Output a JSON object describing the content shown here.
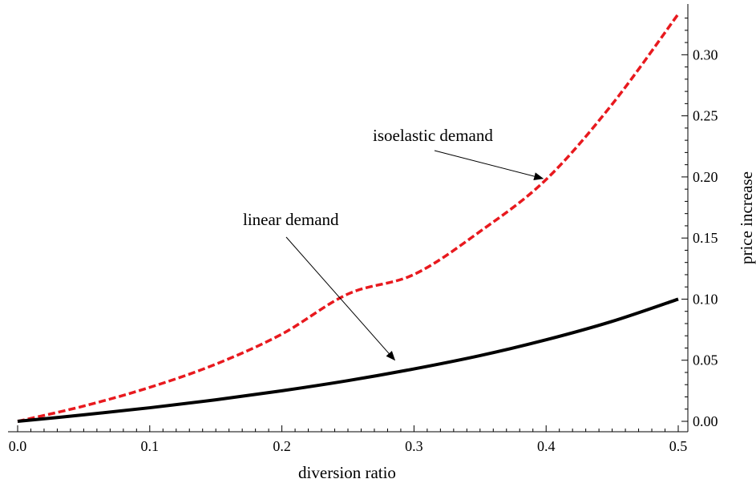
{
  "chart_data": {
    "type": "line",
    "title": "",
    "xlabel": "diversion ratio",
    "ylabel": "price increase",
    "xlim": [
      0,
      0.5
    ],
    "ylim": [
      0,
      0.333
    ],
    "x_ticks": [
      "0.0",
      "0.1",
      "0.2",
      "0.3",
      "0.4",
      "0.5"
    ],
    "y_ticks": [
      "0.00",
      "0.05",
      "0.10",
      "0.15",
      "0.20",
      "0.25",
      "0.30"
    ],
    "grid": false,
    "legend": "none",
    "x": [
      0.0,
      0.05,
      0.1,
      0.15,
      0.2,
      0.25,
      0.3,
      0.35,
      0.4,
      0.45,
      0.5
    ],
    "series": [
      {
        "name": "isoelastic demand",
        "color": "#e8191e",
        "style": "dashed",
        "values": [
          0.0,
          0.0125,
          0.0278,
          0.0468,
          0.0714,
          0.1042,
          0.1202,
          0.1554,
          0.1979,
          0.2595,
          0.3333
        ]
      },
      {
        "name": "linear demand",
        "color": "#000000",
        "style": "solid",
        "values": [
          0.0,
          0.0053,
          0.0111,
          0.0176,
          0.025,
          0.0333,
          0.0429,
          0.0538,
          0.0667,
          0.0818,
          0.1
        ]
      }
    ],
    "annotations": [
      {
        "text": "isoelastic demand",
        "points_to": [
          0.4,
          0.2
        ]
      },
      {
        "text": "linear demand",
        "points_to": [
          0.3,
          0.0429
        ]
      }
    ]
  }
}
